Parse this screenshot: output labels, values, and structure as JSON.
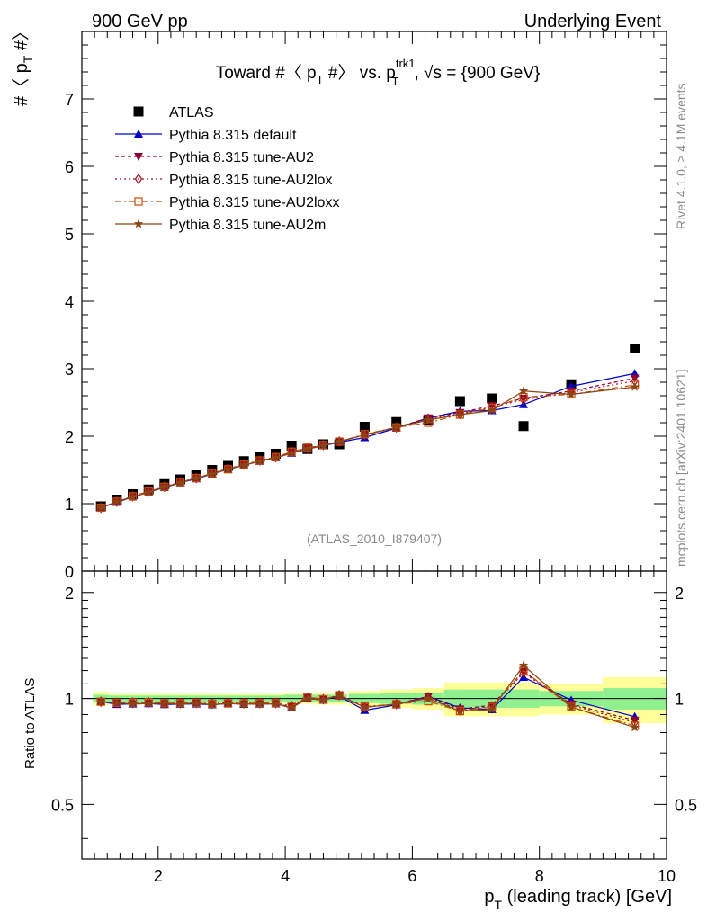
{
  "header": {
    "left": "900 GeV pp",
    "right": "Underlying Event"
  },
  "side": {
    "rivet": "Rivet 4.1.0, ≥ 4.1M events",
    "mcplots": "mcplots.cern.ch [arXiv:2401.10621]"
  },
  "chart_data": {
    "type": "scatter",
    "title": {
      "main": "Toward #〈 p",
      "sub_T1": "T",
      "mid": " #〉 vs. p",
      "sup_trk1": "trk1",
      "sub_T2": "T",
      "tail": ", √s = {900 GeV}"
    },
    "analysis_id": "(ATLAS_2010_I879407)",
    "ylabel": {
      "main": "#〈 p",
      "sub": "T",
      "tail": " #〉"
    },
    "ratio_ylabel": "Ratio to ATLAS",
    "xlabel": {
      "main": "p",
      "sub": "T",
      "tail": " (leading track) [GeV]"
    },
    "xlim": [
      0.8,
      10.0
    ],
    "ylim": [
      0,
      8
    ],
    "ratio_ylim": [
      0.35,
      2.3
    ],
    "xticks": [
      "2",
      "4",
      "6",
      "8",
      "10"
    ],
    "yticks": [
      "0",
      "1",
      "2",
      "3",
      "4",
      "5",
      "6",
      "7"
    ],
    "ratio_ticks": [
      "0.5",
      "1",
      "2"
    ],
    "colors": {
      "data": "#000000",
      "default": "#0000cc",
      "au2": "#8b0038",
      "au2lox": "#a01020",
      "au2loxx": "#cc4a00",
      "au2m": "#8b4513",
      "band_inner": "#8ff08f",
      "band_outer": "#ffff99"
    },
    "bins": {
      "x": [
        1.1,
        1.35,
        1.6,
        1.85,
        2.1,
        2.35,
        2.6,
        2.85,
        3.1,
        3.35,
        3.6,
        3.85,
        4.1,
        4.35,
        4.6,
        4.85,
        5.25,
        5.75,
        6.25,
        6.75,
        7.25,
        7.75,
        8.5,
        9.5
      ],
      "lo": [
        0.975,
        1.225,
        1.475,
        1.725,
        1.975,
        2.225,
        2.475,
        2.725,
        2.975,
        3.225,
        3.475,
        3.725,
        3.975,
        4.225,
        4.475,
        4.725,
        5.0,
        5.5,
        6.0,
        6.5,
        7.0,
        7.5,
        8.0,
        9.0
      ],
      "hi": [
        1.225,
        1.475,
        1.725,
        1.975,
        2.225,
        2.475,
        2.725,
        2.975,
        3.225,
        3.475,
        3.725,
        3.975,
        4.225,
        4.475,
        4.725,
        4.975,
        5.5,
        6.0,
        6.5,
        7.0,
        7.5,
        8.0,
        9.0,
        10.0
      ],
      "band_inner": [
        0.025,
        0.02,
        0.02,
        0.02,
        0.02,
        0.02,
        0.02,
        0.02,
        0.02,
        0.02,
        0.02,
        0.02,
        0.025,
        0.025,
        0.025,
        0.025,
        0.03,
        0.035,
        0.04,
        0.06,
        0.06,
        0.06,
        0.05,
        0.07
      ],
      "band_outer": [
        0.045,
        0.03,
        0.03,
        0.03,
        0.03,
        0.03,
        0.03,
        0.03,
        0.03,
        0.03,
        0.03,
        0.03,
        0.035,
        0.035,
        0.04,
        0.04,
        0.05,
        0.06,
        0.07,
        0.11,
        0.11,
        0.11,
        0.1,
        0.15
      ]
    },
    "series": [
      {
        "name": "ATLAS",
        "key": "data",
        "marker": "square",
        "dash": "",
        "values": [
          0.96,
          1.06,
          1.14,
          1.21,
          1.29,
          1.36,
          1.42,
          1.5,
          1.56,
          1.63,
          1.69,
          1.74,
          1.86,
          1.81,
          1.88,
          1.88,
          2.14,
          2.21,
          2.24,
          2.52,
          2.56,
          2.15,
          2.77,
          3.3
        ]
      },
      {
        "name": "Pythia 8.315 default",
        "key": "default",
        "marker": "triangle-up",
        "dash": "",
        "values": [
          0.94,
          1.02,
          1.1,
          1.17,
          1.24,
          1.31,
          1.37,
          1.44,
          1.51,
          1.57,
          1.63,
          1.68,
          1.75,
          1.81,
          1.86,
          1.91,
          1.98,
          2.12,
          2.27,
          2.37,
          2.38,
          2.47,
          2.74,
          2.93
        ]
      },
      {
        "name": "Pythia 8.315 tune-AU2",
        "key": "au2",
        "marker": "triangle-down",
        "dash": "4,3",
        "values": [
          0.94,
          1.03,
          1.1,
          1.17,
          1.25,
          1.31,
          1.38,
          1.44,
          1.51,
          1.57,
          1.63,
          1.68,
          1.76,
          1.82,
          1.87,
          1.92,
          2.02,
          2.13,
          2.27,
          2.35,
          2.45,
          2.56,
          2.67,
          2.86
        ]
      },
      {
        "name": "Pythia 8.315 tune-AU2lox",
        "key": "au2lox",
        "marker": "diamond",
        "dash": "2,3",
        "values": [
          0.94,
          1.03,
          1.11,
          1.18,
          1.25,
          1.32,
          1.38,
          1.45,
          1.52,
          1.58,
          1.64,
          1.69,
          1.77,
          1.82,
          1.87,
          1.92,
          2.02,
          2.13,
          2.26,
          2.33,
          2.43,
          2.54,
          2.65,
          2.82
        ]
      },
      {
        "name": "Pythia 8.315 tune-AU2loxx",
        "key": "au2loxx",
        "marker": "square-open",
        "dash": "7,3,2,3",
        "values": [
          0.94,
          1.03,
          1.11,
          1.18,
          1.25,
          1.32,
          1.38,
          1.45,
          1.51,
          1.58,
          1.64,
          1.69,
          1.77,
          1.83,
          1.87,
          1.92,
          2.03,
          2.13,
          2.2,
          2.32,
          2.42,
          2.58,
          2.62,
          2.76
        ]
      },
      {
        "name": "Pythia 8.315 tune-AU2m",
        "key": "au2m",
        "marker": "star",
        "dash": "",
        "values": [
          0.94,
          1.03,
          1.1,
          1.17,
          1.25,
          1.31,
          1.38,
          1.44,
          1.51,
          1.57,
          1.63,
          1.68,
          1.75,
          1.81,
          1.86,
          1.92,
          2.02,
          2.13,
          2.24,
          2.32,
          2.38,
          2.67,
          2.62,
          2.73
        ]
      }
    ]
  }
}
